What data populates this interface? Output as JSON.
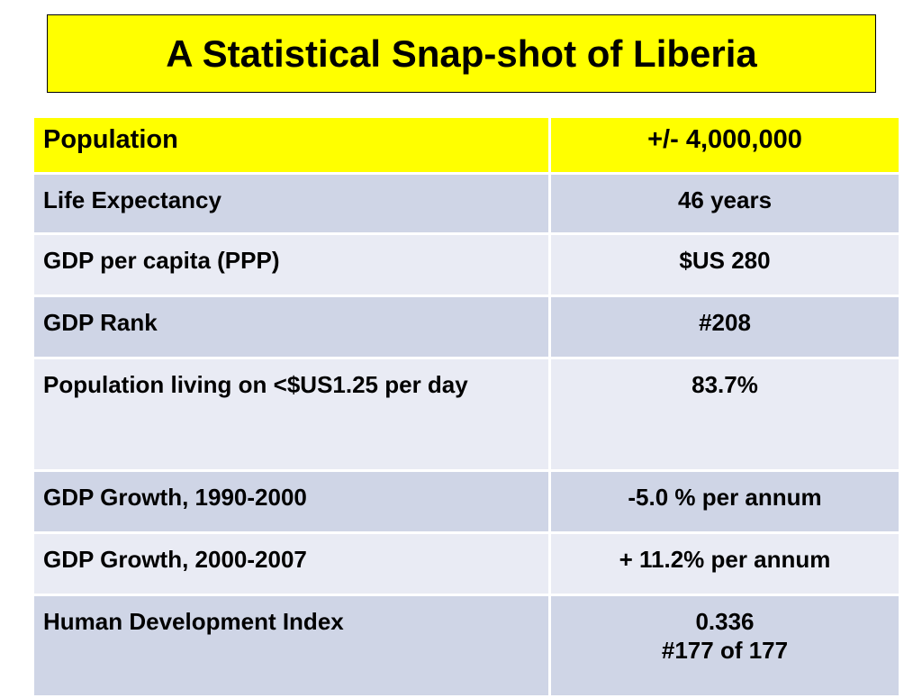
{
  "header": {
    "title": "A Statistical Snap-shot of Liberia"
  },
  "table": {
    "rows": [
      [
        "Population",
        "+/-  4,000,000"
      ],
      [
        "Life Expectancy",
        "46 years"
      ],
      [
        "GDP per capita  (PPP)",
        "$US 280"
      ],
      [
        "GDP Rank",
        "#208"
      ],
      [
        "Population living on <$US1.25 per day",
        "83.7%"
      ],
      [
        "GDP  Growth, 1990-2000",
        "  -5.0 % per annum"
      ],
      [
        "GDP  Growth, 2000-2007",
        "+ 11.2% per annum"
      ],
      [
        "Human Development Index",
        "0.336\n#177 of 177"
      ]
    ]
  }
}
